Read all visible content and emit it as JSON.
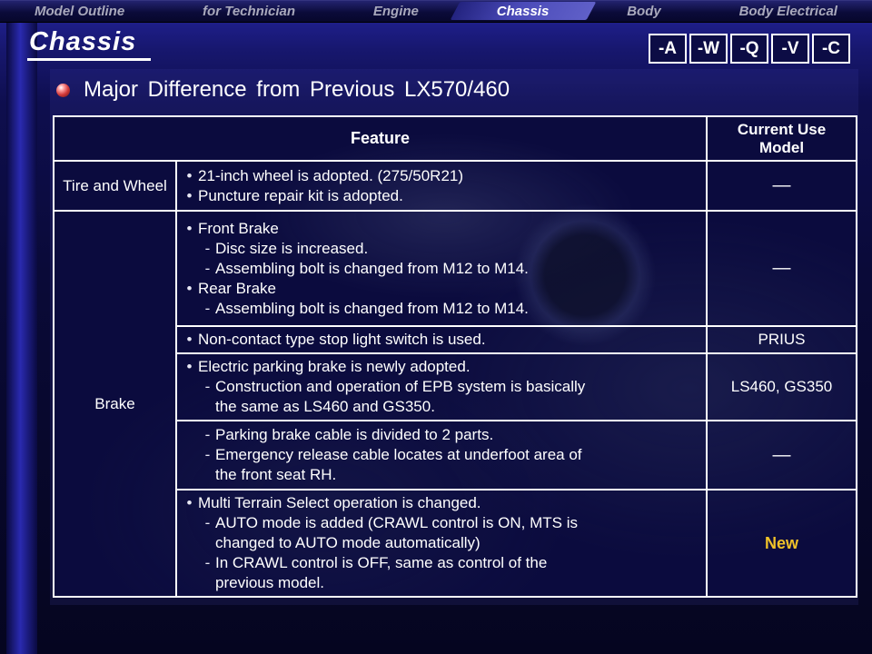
{
  "nav": {
    "items": [
      {
        "label": "Model Outline",
        "active": false
      },
      {
        "label": "for Technician",
        "active": false
      },
      {
        "label": "Engine",
        "active": false
      },
      {
        "label": "Chassis",
        "active": true
      },
      {
        "label": "Body",
        "active": false
      },
      {
        "label": "Body Electrical",
        "active": false
      }
    ]
  },
  "page": {
    "section_title": "Chassis",
    "heading": "Major Difference from Previous LX570/460"
  },
  "toolbar": {
    "buttons": [
      "-A",
      "-W",
      "-Q",
      "-V",
      "-C"
    ]
  },
  "table": {
    "header_feature": "Feature",
    "header_model": "Current Use Model",
    "rows": [
      {
        "category": "Tire and Wheel",
        "category_rowspan": 1,
        "lines": [
          {
            "marker": "bullet",
            "text": "21-inch wheel is adopted. (275/50R21)"
          },
          {
            "marker": "bullet",
            "text": "Puncture repair kit is adopted."
          }
        ],
        "model": "—",
        "model_highlight": false
      },
      {
        "category": "Brake",
        "category_rowspan": 5,
        "lines": [
          {
            "marker": "bullet",
            "text": "Front Brake"
          },
          {
            "marker": "dash",
            "text": "Disc size is increased."
          },
          {
            "marker": "dash",
            "text": "Assembling bolt is changed from M12 to M14."
          },
          {
            "marker": "bullet",
            "text": "Rear Brake"
          },
          {
            "marker": "dash",
            "text": "Assembling bolt is changed from M12 to M14."
          }
        ],
        "model": "—",
        "model_highlight": false
      },
      {
        "lines": [
          {
            "marker": "bullet",
            "text": "Non-contact type stop light switch is used."
          }
        ],
        "model": "PRIUS",
        "model_highlight": false
      },
      {
        "lines": [
          {
            "marker": "bullet",
            "text": "Electric parking brake is newly adopted."
          },
          {
            "marker": "dash",
            "text": "Construction and operation of EPB system is basically\nthe same as LS460 and GS350."
          }
        ],
        "model": "LS460, GS350",
        "model_highlight": false
      },
      {
        "lines": [
          {
            "marker": "dash",
            "text": "Parking brake cable is divided to 2 parts."
          },
          {
            "marker": "dash",
            "text": "Emergency release cable locates at underfoot area of\nthe front seat RH."
          }
        ],
        "model": "—",
        "model_highlight": false
      },
      {
        "lines": [
          {
            "marker": "bullet",
            "text": "Multi Terrain Select operation is changed."
          },
          {
            "marker": "dash",
            "text": "AUTO mode is added (CRAWL control is ON, MTS is\nchanged to AUTO mode automatically)"
          },
          {
            "marker": "dash",
            "text": "In CRAWL control is OFF, same as control of the\nprevious model."
          }
        ],
        "model": "New",
        "model_highlight": true
      }
    ]
  },
  "colors": {
    "background": "#0a0a38",
    "accent_strip": "#2a2ab0",
    "table_border": "#ffffff",
    "text": "#ffffff",
    "nav_inactive": "#a9a9bc",
    "highlight_new": "#f0c229",
    "bullet_sphere": "#d23a3a"
  }
}
